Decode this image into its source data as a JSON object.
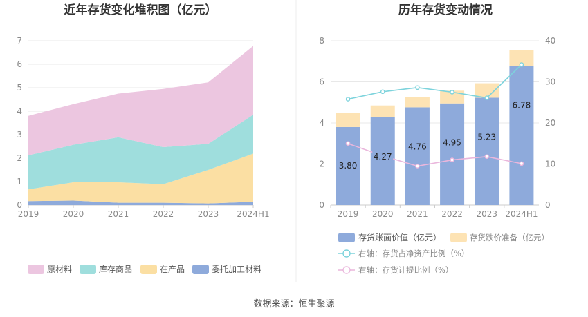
{
  "chart_data": [
    {
      "type": "area",
      "title": "近年存货变化堆积图（亿元）",
      "categories": [
        "2019",
        "2020",
        "2021",
        "2022",
        "2023",
        "2024H1"
      ],
      "ylim": [
        0,
        7
      ],
      "yticks": [
        "0",
        "1",
        "2",
        "3",
        "4",
        "5",
        "6",
        "7"
      ],
      "stacked": true,
      "grid": true,
      "legend_position": "bottom",
      "series": [
        {
          "name": "委托加工材料",
          "values": [
            0.17,
            0.19,
            0.1,
            0.1,
            0.07,
            0.14
          ],
          "color": "#8eaadb"
        },
        {
          "name": "在产品",
          "values": [
            0.5,
            0.78,
            0.87,
            0.79,
            1.43,
            2.05
          ],
          "color": "#fbdfa3"
        },
        {
          "name": "库存商品",
          "values": [
            1.45,
            1.6,
            1.92,
            1.58,
            1.11,
            1.66
          ],
          "color": "#9fdedd"
        },
        {
          "name": "原材料",
          "values": [
            1.68,
            1.73,
            1.86,
            2.48,
            2.62,
            2.93
          ],
          "color": "#ecc6e0"
        }
      ]
    },
    {
      "type": "bar",
      "title": "历年存货变动情况",
      "categories": [
        "2019",
        "2020",
        "2021",
        "2022",
        "2023",
        "2024H1"
      ],
      "ylim": [
        0,
        8
      ],
      "yticks": [
        "0",
        "2",
        "4",
        "6",
        "8"
      ],
      "y2lim": [
        0,
        40
      ],
      "y2ticks": [
        "0",
        "10",
        "20",
        "30",
        "40"
      ],
      "grid": true,
      "legend_position": "bottom",
      "series": [
        {
          "name": "存货账面价值（亿元）",
          "values": [
            3.8,
            4.27,
            4.76,
            4.95,
            5.23,
            6.78
          ],
          "labels": [
            "3.80",
            "4.27",
            "4.76",
            "4.95",
            "5.23",
            "6.78"
          ],
          "color": "#8eaadb",
          "stack": "inventory"
        },
        {
          "name": "存货跌价准备（亿元）",
          "values": [
            0.68,
            0.58,
            0.5,
            0.62,
            0.7,
            0.78
          ],
          "color": "#fde3b4",
          "stack": "inventory"
        },
        {
          "name": "右轴：存货占净资产比例（%）",
          "type": "line",
          "axis": "right",
          "values": [
            25.8,
            27.6,
            28.6,
            27.5,
            26.1,
            34.2
          ],
          "color": "#7dd3dc"
        },
        {
          "name": "右轴：存货计提比例（%）",
          "type": "line",
          "axis": "right",
          "values": [
            15.0,
            12.0,
            9.5,
            11.0,
            11.8,
            10.1
          ],
          "color": "#eab6dc"
        }
      ]
    }
  ],
  "footer": {
    "source": "数据来源：恒生聚源"
  }
}
